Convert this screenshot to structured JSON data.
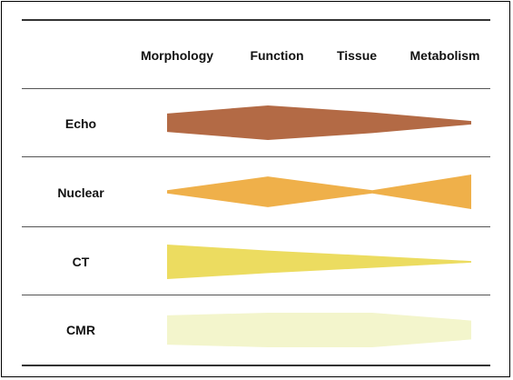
{
  "columns": [
    "Morphology",
    "Function",
    "Tissue",
    "Metabolism"
  ],
  "rows": [
    {
      "label": "Echo",
      "color": "#b36a45",
      "values": [
        0.53,
        1.0,
        0.6,
        0.1
      ]
    },
    {
      "label": "Nuclear",
      "color": "#efb04a",
      "values": [
        0.09,
        0.89,
        0.09,
        1.0
      ]
    },
    {
      "label": "CT",
      "color": "#ecdc60",
      "values": [
        1.0,
        0.65,
        0.35,
        0.05
      ]
    },
    {
      "label": "CMR",
      "color": "#f3f5cc",
      "values": [
        0.85,
        1.0,
        1.0,
        0.55
      ]
    }
  ]
}
